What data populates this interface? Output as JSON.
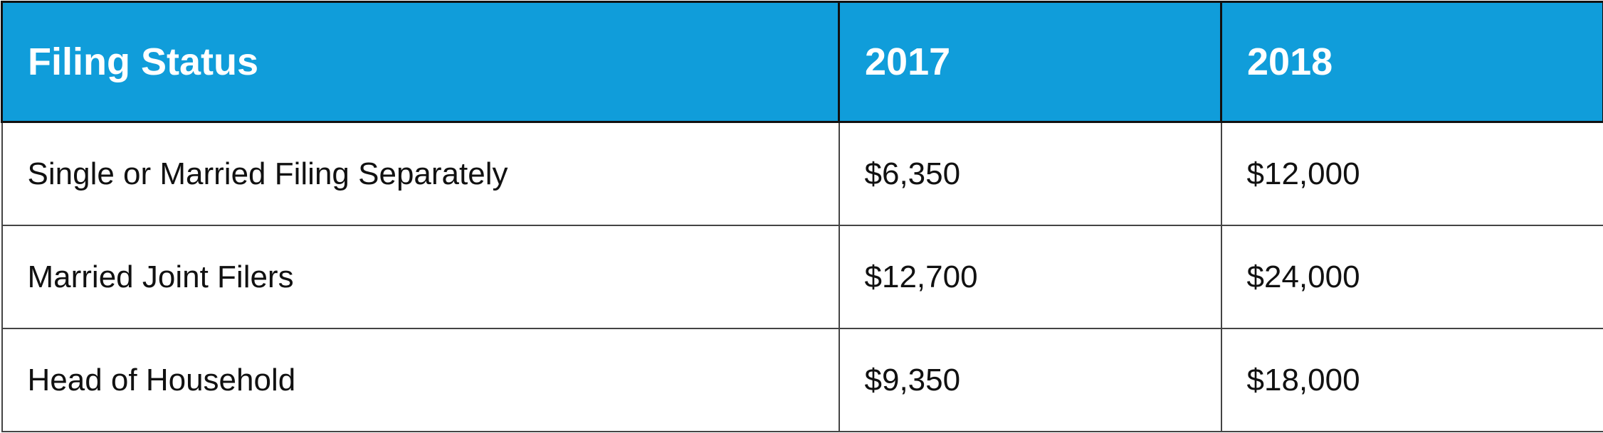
{
  "table": {
    "header_color": "#109dda",
    "headers": [
      "Filing Status",
      "2017",
      "2018"
    ],
    "rows": [
      [
        "Single or Married Filing Separately",
        "$6,350",
        "$12,000"
      ],
      [
        "Married Joint Filers",
        "$12,700",
        "$24,000"
      ],
      [
        "Head of Household",
        "$9,350",
        "$18,000"
      ]
    ]
  }
}
